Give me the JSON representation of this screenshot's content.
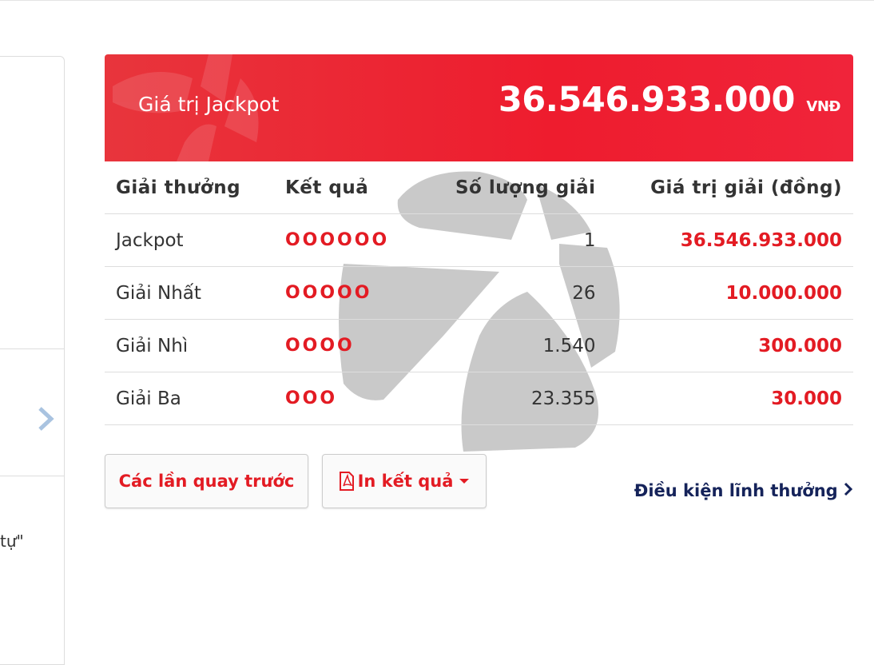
{
  "left_panel": {
    "fragment": "tự\""
  },
  "jackpot": {
    "label": "Giá trị Jackpot",
    "amount": "36.546.933.000",
    "currency": "VNĐ"
  },
  "table": {
    "headers": [
      "Giải thưởng",
      "Kết quả",
      "Số lượng giải",
      "Giá trị giải (đồng)"
    ],
    "rows": [
      [
        "Jackpot",
        "OOOOOO",
        "1",
        "36.546.933.000"
      ],
      [
        "Giải Nhất",
        "OOOOO",
        "26",
        "10.000.000"
      ],
      [
        "Giải Nhì",
        "OOOO",
        "1.540",
        "300.000"
      ],
      [
        "Giải Ba",
        "OOO",
        "23.355",
        "30.000"
      ]
    ]
  },
  "buttons": {
    "previous": "Các lần quay trước",
    "print": "In kết quả"
  },
  "link": "Điều kiện lĩnh thưởng"
}
